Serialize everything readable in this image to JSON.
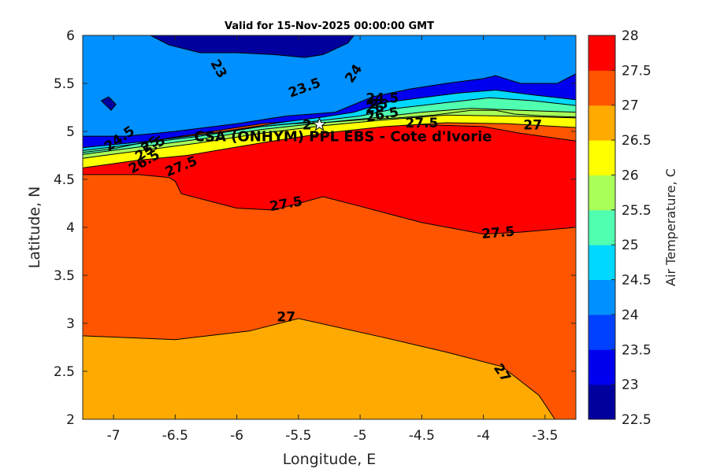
{
  "chart_data": {
    "type": "contour",
    "title": "Valid for 15-Nov-2025 00:00:00 GMT",
    "xlabel": "Longitude, E",
    "ylabel": "Latitude, N",
    "xlim": [
      -7.25,
      -3.25
    ],
    "ylim": [
      2,
      6
    ],
    "xticks": [
      -7,
      -6.5,
      -6,
      -5.5,
      -5,
      -4.5,
      -4,
      -3.5
    ],
    "yticks": [
      2,
      2.5,
      3,
      3.5,
      4,
      4.5,
      5,
      5.5,
      6
    ],
    "colorbar": {
      "label": "Air Temperature, C",
      "levels": [
        22.5,
        23,
        23.5,
        24,
        24.5,
        25,
        25.5,
        26,
        26.5,
        27,
        27.5,
        28
      ],
      "colors": [
        "#00009f",
        "#0000ef",
        "#0040ff",
        "#0090ff",
        "#00d8ff",
        "#50ffb0",
        "#a8ff58",
        "#ffff00",
        "#ffaa00",
        "#ff5500",
        "#ff0000"
      ]
    },
    "site": {
      "label": "CSA (ONHYM) PPL EBS  - Cote d'Ivorie",
      "lon": -5.33,
      "lat": 5.07
    },
    "contour_labels": [
      {
        "text": "23",
        "lon": -6.15,
        "lat": 5.65,
        "angle": 60
      },
      {
        "text": "23.5",
        "lon": -5.45,
        "lat": 5.45,
        "angle": -20
      },
      {
        "text": "24",
        "lon": -5.05,
        "lat": 5.6,
        "angle": -55
      },
      {
        "text": "24.5",
        "lon": -4.82,
        "lat": 5.34,
        "angle": 0
      },
      {
        "text": "26",
        "lon": -4.88,
        "lat": 5.24,
        "angle": 0
      },
      {
        "text": "26.5",
        "lon": -4.82,
        "lat": 5.17,
        "angle": -10
      },
      {
        "text": "27.5",
        "lon": -4.5,
        "lat": 5.08,
        "angle": 0
      },
      {
        "text": "27",
        "lon": -3.6,
        "lat": 5.06,
        "angle": 0
      },
      {
        "text": "27.5",
        "lon": -6.45,
        "lat": 4.63,
        "angle": -22
      },
      {
        "text": "27.5",
        "lon": -5.6,
        "lat": 4.24,
        "angle": -10
      },
      {
        "text": "27.5",
        "lon": -3.88,
        "lat": 3.94,
        "angle": -5
      },
      {
        "text": "27",
        "lon": -5.6,
        "lat": 3.06,
        "angle": 0
      },
      {
        "text": "27",
        "lon": -3.85,
        "lat": 2.48,
        "angle": 55
      },
      {
        "text": "24.5",
        "lon": -6.95,
        "lat": 4.92,
        "angle": -35
      },
      {
        "text": "25",
        "lon": -6.7,
        "lat": 4.86,
        "angle": -35
      },
      {
        "text": "25.5",
        "lon": -6.7,
        "lat": 4.82,
        "angle": -35
      },
      {
        "text": "26.5",
        "lon": -6.75,
        "lat": 4.68,
        "angle": -30
      },
      {
        "text": "25",
        "lon": -4.85,
        "lat": 5.28,
        "angle": 0
      },
      {
        "text": "2",
        "lon": -5.43,
        "lat": 5.06,
        "angle": 0
      }
    ],
    "regions": [
      {
        "level": 26.5,
        "points": [
          [
            -7.25,
            2
          ],
          [
            -3.25,
            2
          ],
          [
            -3.25,
            6
          ],
          [
            -7.25,
            6
          ]
        ]
      },
      {
        "level": 27,
        "points": [
          [
            -3.42,
            2
          ],
          [
            -3.55,
            2.25
          ],
          [
            -3.85,
            2.55
          ],
          [
            -4.3,
            2.7
          ],
          [
            -4.8,
            2.85
          ],
          [
            -5.5,
            3.05
          ],
          [
            -5.9,
            2.92
          ],
          [
            -6.5,
            2.83
          ],
          [
            -7.25,
            2.87
          ],
          [
            -7.25,
            6
          ],
          [
            -3.25,
            6
          ],
          [
            -3.25,
            2
          ]
        ]
      },
      {
        "level": 27.5,
        "points": [
          [
            -7.25,
            4.55
          ],
          [
            -6.8,
            4.55
          ],
          [
            -6.55,
            4.52
          ],
          [
            -6.5,
            4.48
          ],
          [
            -6.45,
            4.35
          ],
          [
            -6.0,
            4.2
          ],
          [
            -5.7,
            4.18
          ],
          [
            -5.3,
            4.32
          ],
          [
            -5.0,
            4.22
          ],
          [
            -4.5,
            4.05
          ],
          [
            -4.0,
            3.93
          ],
          [
            -3.7,
            3.95
          ],
          [
            -3.25,
            4.0
          ],
          [
            -3.25,
            4.9
          ],
          [
            -3.7,
            4.98
          ],
          [
            -4.0,
            5.05
          ],
          [
            -4.5,
            5.07
          ],
          [
            -5.0,
            5.08
          ],
          [
            -5.6,
            5.07
          ],
          [
            -6.2,
            4.92
          ],
          [
            -6.8,
            4.75
          ],
          [
            -7.25,
            4.68
          ]
        ]
      },
      {
        "level": 23,
        "points": [
          [
            -7.25,
            6
          ],
          [
            -3.25,
            6
          ],
          [
            -3.25,
            5.2
          ],
          [
            -3.6,
            5.25
          ],
          [
            -3.9,
            5.3
          ],
          [
            -4.3,
            5.28
          ],
          [
            -4.7,
            5.27
          ],
          [
            -5.0,
            5.15
          ],
          [
            -5.4,
            5.12
          ],
          [
            -5.8,
            5.08
          ],
          [
            -6.3,
            4.98
          ],
          [
            -6.8,
            4.88
          ],
          [
            -7.25,
            4.83
          ]
        ]
      },
      {
        "level": 24,
        "points": [
          [
            -3.25,
            5.6
          ],
          [
            -3.4,
            5.5
          ],
          [
            -3.7,
            5.5
          ],
          [
            -3.9,
            5.58
          ],
          [
            -4.0,
            5.55
          ],
          [
            -4.3,
            5.5
          ],
          [
            -4.6,
            5.44
          ],
          [
            -4.9,
            5.36
          ],
          [
            -5.2,
            5.2
          ],
          [
            -5.6,
            5.16
          ],
          [
            -6.0,
            5.08
          ],
          [
            -6.5,
            5.0
          ],
          [
            -6.9,
            4.95
          ],
          [
            -7.25,
            4.95
          ],
          [
            -7.25,
            6
          ],
          [
            -3.25,
            6
          ]
        ]
      },
      {
        "level": 24.5,
        "points": [
          [
            -3.25,
            5.33
          ],
          [
            -3.6,
            5.38
          ],
          [
            -3.9,
            5.43
          ],
          [
            -4.2,
            5.4
          ],
          [
            -4.5,
            5.35
          ],
          [
            -4.8,
            5.3
          ],
          [
            -5.05,
            5.2
          ],
          [
            -5.3,
            5.15
          ],
          [
            -5.6,
            5.1
          ],
          [
            -6.2,
            4.98
          ],
          [
            -6.7,
            4.9
          ],
          [
            -7.25,
            4.83
          ],
          [
            -7.25,
            4.78
          ],
          [
            -6.8,
            4.84
          ],
          [
            -6.2,
            4.93
          ],
          [
            -5.6,
            5.04
          ],
          [
            -5.2,
            5.1
          ],
          [
            -4.9,
            5.17
          ],
          [
            -4.5,
            5.25
          ],
          [
            -4.1,
            5.28
          ],
          [
            -3.7,
            5.22
          ],
          [
            -3.25,
            5.2
          ]
        ]
      },
      {
        "level": 25,
        "points": [
          [
            -3.25,
            5.27
          ],
          [
            -3.6,
            5.32
          ],
          [
            -3.95,
            5.35
          ],
          [
            -4.3,
            5.3
          ],
          [
            -4.7,
            5.24
          ],
          [
            -5.0,
            5.16
          ],
          [
            -5.4,
            5.1
          ],
          [
            -5.8,
            5.05
          ],
          [
            -6.3,
            4.95
          ],
          [
            -7.25,
            4.8
          ],
          [
            -7.25,
            4.74
          ],
          [
            -6.3,
            4.9
          ],
          [
            -5.8,
            5.0
          ],
          [
            -5.3,
            5.07
          ],
          [
            -4.9,
            5.13
          ],
          [
            -4.5,
            5.18
          ],
          [
            -4.1,
            5.2
          ],
          [
            -3.7,
            5.16
          ],
          [
            -3.25,
            5.14
          ]
        ]
      },
      {
        "level": 25.5,
        "points": [
          [
            -3.25,
            5.2
          ],
          [
            -3.7,
            5.22
          ],
          [
            -4.1,
            5.24
          ],
          [
            -4.5,
            5.2
          ],
          [
            -4.9,
            5.14
          ],
          [
            -5.3,
            5.09
          ],
          [
            -5.8,
            5.02
          ],
          [
            -6.3,
            4.92
          ],
          [
            -7.25,
            4.76
          ],
          [
            -7.25,
            4.71
          ],
          [
            -6.3,
            4.86
          ],
          [
            -5.8,
            4.96
          ],
          [
            -5.3,
            5.04
          ],
          [
            -4.8,
            5.1
          ],
          [
            -4.3,
            5.14
          ],
          [
            -3.8,
            5.14
          ],
          [
            -3.25,
            5.1
          ]
        ]
      },
      {
        "level": 26,
        "points": [
          [
            -3.25,
            5.14
          ],
          [
            -3.8,
            5.16
          ],
          [
            -4.3,
            5.17
          ],
          [
            -4.8,
            5.12
          ],
          [
            -5.3,
            5.06
          ],
          [
            -5.8,
            4.98
          ],
          [
            -6.3,
            4.88
          ],
          [
            -7.25,
            4.72
          ],
          [
            -7.25,
            4.62
          ],
          [
            -6.8,
            4.7
          ],
          [
            -6.4,
            4.75
          ],
          [
            -5.8,
            4.88
          ],
          [
            -5.3,
            4.98
          ],
          [
            -4.8,
            5.05
          ],
          [
            -4.3,
            5.09
          ],
          [
            -3.8,
            5.08
          ],
          [
            -3.25,
            5.04
          ]
        ]
      },
      {
        "level": 22.5,
        "points": [
          [
            -6.7,
            6
          ],
          [
            -6.55,
            5.9
          ],
          [
            -6.3,
            5.82
          ],
          [
            -6.0,
            5.82
          ],
          [
            -5.7,
            5.8
          ],
          [
            -5.45,
            5.77
          ],
          [
            -5.3,
            5.8
          ],
          [
            -5.1,
            5.92
          ],
          [
            -5.05,
            6
          ]
        ]
      },
      {
        "level": 22.5,
        "points": [
          [
            -7.1,
            5.32
          ],
          [
            -7.02,
            5.22
          ],
          [
            -6.98,
            5.28
          ],
          [
            -7.04,
            5.36
          ]
        ]
      }
    ],
    "coastline": [
      [
        -7.25,
        4.78
      ],
      [
        -7.0,
        4.82
      ],
      [
        -6.7,
        4.9
      ],
      [
        -6.4,
        4.95
      ],
      [
        -6.1,
        5.0
      ],
      [
        -5.8,
        5.05
      ],
      [
        -5.55,
        5.08
      ],
      [
        -5.3,
        5.09
      ],
      [
        -5.0,
        5.12
      ],
      [
        -4.7,
        5.14
      ],
      [
        -4.4,
        5.17
      ],
      [
        -4.1,
        5.22
      ],
      [
        -3.9,
        5.22
      ],
      [
        -3.75,
        5.18
      ],
      [
        -3.5,
        5.16
      ],
      [
        -3.25,
        5.15
      ]
    ]
  }
}
